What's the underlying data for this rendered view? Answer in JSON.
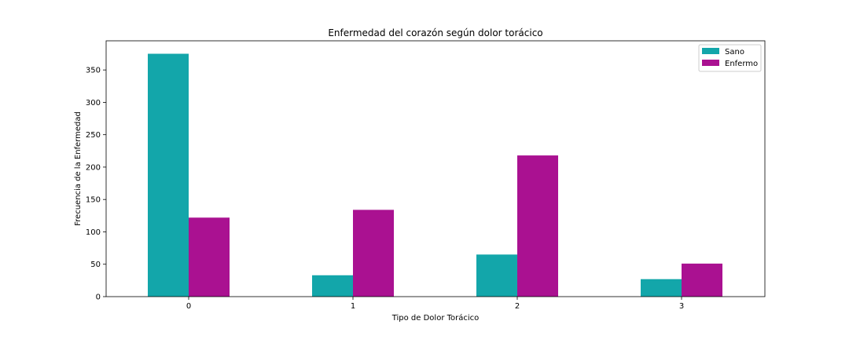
{
  "chart_data": {
    "type": "bar",
    "title": "Enfermedad del corazón según dolor torácico",
    "xlabel": "Tipo de Dolor Torácico",
    "ylabel": "Frecuencia de la Enfermedad",
    "categories": [
      "0",
      "1",
      "2",
      "3"
    ],
    "series": [
      {
        "name": "Sano",
        "color": "#13a6aa",
        "values": [
          375,
          33,
          65,
          27
        ]
      },
      {
        "name": "Enfermo",
        "color": "#aa1191",
        "values": [
          122,
          134,
          218,
          51
        ]
      }
    ],
    "ylim": [
      0,
      395
    ],
    "yticks": [
      0,
      50,
      100,
      150,
      200,
      250,
      300,
      350
    ],
    "grid": false,
    "legend_position": "top-right"
  }
}
